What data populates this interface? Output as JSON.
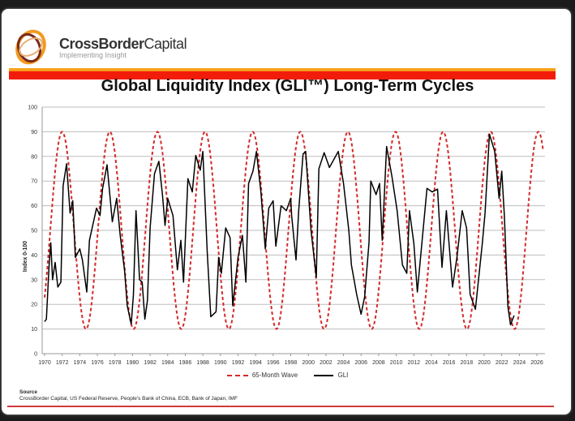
{
  "header": {
    "brand_bold": "CrossBorder",
    "brand_light": "Capital",
    "tagline": "Implementing Insight"
  },
  "chart_data": {
    "type": "line",
    "title": "Global Liquidity Index (GLI™) Long-Term Cycles",
    "ylabel": "Index 0-100",
    "xlabel": "",
    "xlim": [
      1970,
      2027
    ],
    "ylim": [
      0,
      100
    ],
    "yticks": [
      0,
      10,
      20,
      30,
      40,
      50,
      60,
      70,
      80,
      90,
      100
    ],
    "xticks": [
      1970,
      1972,
      1974,
      1976,
      1978,
      1980,
      1982,
      1984,
      1986,
      1988,
      1990,
      1992,
      1994,
      1996,
      1998,
      2000,
      2002,
      2004,
      2006,
      2008,
      2010,
      2012,
      2014,
      2016,
      2018,
      2020,
      2022,
      2024,
      2026
    ],
    "grid": "horizontal",
    "legend_position": "bottom",
    "colors": {
      "wave": "#d42a2a",
      "gli": "#000000"
    },
    "series": [
      {
        "name": "65-Month Wave",
        "style": "dashed",
        "model": {
          "center": 50,
          "amplitude": 40,
          "period_months": 65,
          "first_peak_year": 1972.0,
          "start_year": 1970.0,
          "end_year": 2026.7
        }
      },
      {
        "name": "GLI",
        "style": "solid",
        "points": [
          [
            1970.0,
            13
          ],
          [
            1970.2,
            14
          ],
          [
            1970.5,
            35
          ],
          [
            1970.7,
            45
          ],
          [
            1970.9,
            30
          ],
          [
            1971.2,
            37
          ],
          [
            1971.5,
            27
          ],
          [
            1971.85,
            29
          ],
          [
            1972.1,
            68
          ],
          [
            1972.5,
            77
          ],
          [
            1972.9,
            57
          ],
          [
            1973.2,
            62
          ],
          [
            1973.5,
            39
          ],
          [
            1974.0,
            42.5
          ],
          [
            1974.3,
            38
          ],
          [
            1974.8,
            25
          ],
          [
            1975.1,
            46
          ],
          [
            1975.9,
            59
          ],
          [
            1976.3,
            56
          ],
          [
            1976.6,
            67
          ],
          [
            1977.1,
            76.6
          ],
          [
            1977.7,
            53.5
          ],
          [
            1978.2,
            63
          ],
          [
            1978.6,
            48
          ],
          [
            1979.1,
            33.7
          ],
          [
            1979.4,
            19.4
          ],
          [
            1979.85,
            12
          ],
          [
            1980.1,
            23.8
          ],
          [
            1980.4,
            58
          ],
          [
            1980.8,
            30
          ],
          [
            1981.1,
            29
          ],
          [
            1981.4,
            14
          ],
          [
            1981.7,
            21.6
          ],
          [
            1982.0,
            51
          ],
          [
            1982.5,
            73
          ],
          [
            1983.0,
            78
          ],
          [
            1983.4,
            64.5
          ],
          [
            1983.7,
            52
          ],
          [
            1984.0,
            63
          ],
          [
            1984.6,
            56
          ],
          [
            1985.1,
            34
          ],
          [
            1985.5,
            46
          ],
          [
            1985.8,
            29
          ],
          [
            1986.3,
            71
          ],
          [
            1986.8,
            65.6
          ],
          [
            1987.2,
            80.4
          ],
          [
            1987.7,
            74.4
          ],
          [
            1988.0,
            82
          ],
          [
            1988.5,
            41.4
          ],
          [
            1988.9,
            15
          ],
          [
            1989.5,
            17
          ],
          [
            1989.8,
            39
          ],
          [
            1990.1,
            32.6
          ],
          [
            1990.6,
            51
          ],
          [
            1991.1,
            47
          ],
          [
            1991.4,
            19.4
          ],
          [
            1992.0,
            39
          ],
          [
            1992.5,
            48
          ],
          [
            1992.9,
            29
          ],
          [
            1993.2,
            69
          ],
          [
            1993.7,
            74
          ],
          [
            1994.1,
            82
          ],
          [
            1994.6,
            65.6
          ],
          [
            1995.1,
            42.5
          ],
          [
            1995.5,
            59
          ],
          [
            1996.0,
            62
          ],
          [
            1996.3,
            43.6
          ],
          [
            1996.9,
            60
          ],
          [
            1997.5,
            58
          ],
          [
            1998.0,
            63
          ],
          [
            1998.1,
            56
          ],
          [
            1998.6,
            38
          ],
          [
            1998.9,
            58
          ],
          [
            1999.4,
            81
          ],
          [
            1999.7,
            82
          ],
          [
            2000.0,
            66
          ],
          [
            2000.3,
            50
          ],
          [
            2000.9,
            31
          ],
          [
            2001.2,
            75
          ],
          [
            2001.8,
            81.5
          ],
          [
            2002.4,
            75.5
          ],
          [
            2003.4,
            82
          ],
          [
            2004.0,
            69
          ],
          [
            2004.6,
            50
          ],
          [
            2004.9,
            36
          ],
          [
            2005.5,
            24
          ],
          [
            2006.0,
            16
          ],
          [
            2006.4,
            23
          ],
          [
            2006.9,
            45
          ],
          [
            2007.1,
            70
          ],
          [
            2007.7,
            64.5
          ],
          [
            2008.1,
            69
          ],
          [
            2008.4,
            46
          ],
          [
            2008.9,
            84
          ],
          [
            2009.5,
            72
          ],
          [
            2010.1,
            58
          ],
          [
            2010.7,
            36
          ],
          [
            2011.2,
            32.6
          ],
          [
            2011.5,
            58
          ],
          [
            2012.0,
            44.7
          ],
          [
            2012.4,
            25
          ],
          [
            2013.0,
            48
          ],
          [
            2013.5,
            67
          ],
          [
            2014.1,
            65.6
          ],
          [
            2014.7,
            66.7
          ],
          [
            2015.2,
            35
          ],
          [
            2015.7,
            58
          ],
          [
            2016.4,
            27
          ],
          [
            2016.9,
            39
          ],
          [
            2017.5,
            58
          ],
          [
            2018.0,
            51
          ],
          [
            2018.4,
            24
          ],
          [
            2019.0,
            18
          ],
          [
            2019.8,
            45
          ],
          [
            2020.1,
            57
          ],
          [
            2020.6,
            89
          ],
          [
            2021.2,
            82
          ],
          [
            2021.7,
            63
          ],
          [
            2022.0,
            74
          ],
          [
            2022.3,
            56
          ],
          [
            2022.7,
            19
          ],
          [
            2023.0,
            11.7
          ],
          [
            2023.4,
            15.5
          ]
        ]
      }
    ]
  },
  "source": {
    "heading": "Source",
    "text": "CrossBorder Capital, US Federal Reserve, People's Bank of China, ECB, Bank of Japan, IMF"
  }
}
